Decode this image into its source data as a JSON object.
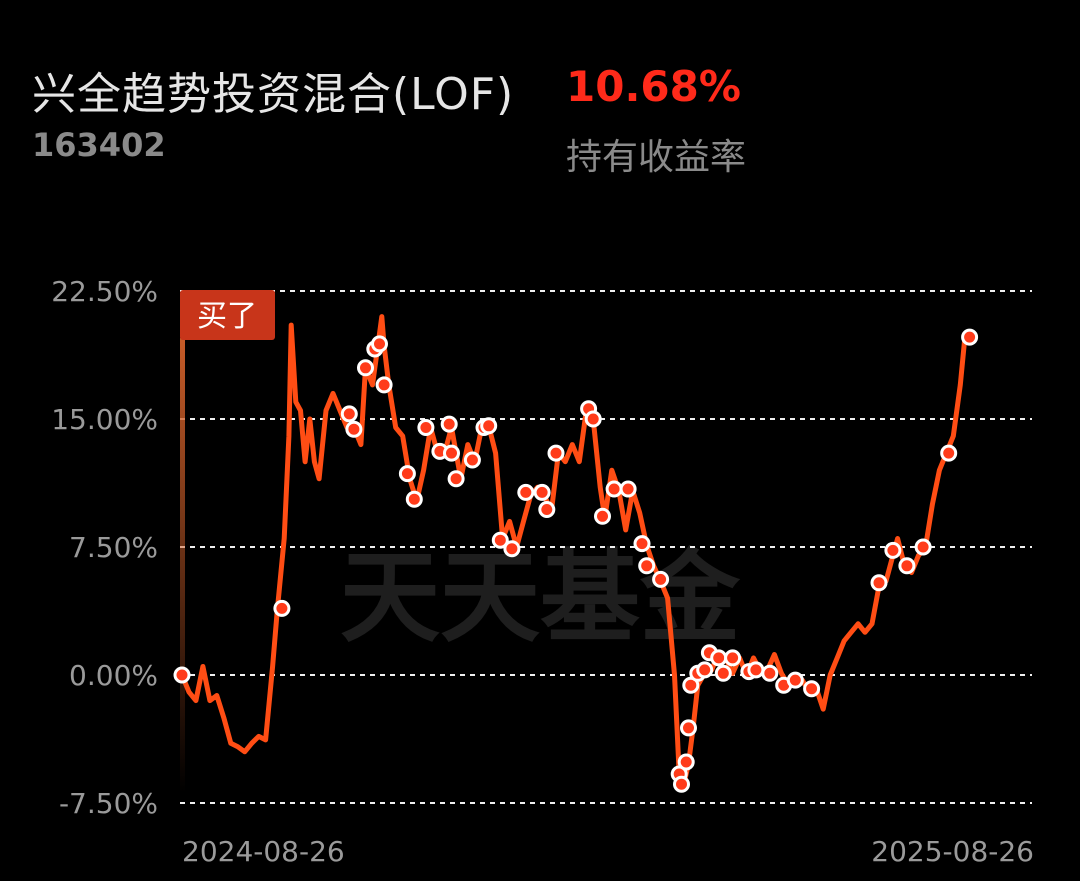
{
  "header": {
    "fund_name": "兴全趋势投资混合(LOF)",
    "fund_code": "163402",
    "return_value": "10.68%",
    "return_label": "持有收益率"
  },
  "watermark": "天天基金",
  "colors": {
    "background": "#000000",
    "line": "#ff4d14",
    "return_value": "#ff2a1a",
    "dot_fill": "#ff3b1a",
    "buy_tag": "#c8351a"
  },
  "chart_data": {
    "type": "line",
    "ylim": [
      -7.5,
      22.5
    ],
    "y_ticks": [
      22.5,
      15.0,
      7.5,
      0.0,
      -7.5
    ],
    "y_tick_labels": [
      "22.50%",
      "15.00%",
      "7.50%",
      "0.00%",
      "-7.50%"
    ],
    "x_tick_labels": [
      "2024-08-26",
      "2025-08-26"
    ],
    "x_domain": [
      "2024-08-26",
      "2025-08-26"
    ],
    "grid": true,
    "buy_marker": {
      "date": "2024-08-26",
      "label": "买了"
    },
    "series": [
      {
        "points": [
          [
            "2024-08-26",
            0.0
          ],
          [
            "2024-08-29",
            -1.0
          ],
          [
            "2024-09-01",
            -1.5
          ],
          [
            "2024-09-04",
            0.5
          ],
          [
            "2024-09-07",
            -1.5
          ],
          [
            "2024-09-10",
            -1.2
          ],
          [
            "2024-09-13",
            -2.5
          ],
          [
            "2024-09-16",
            -4.0
          ],
          [
            "2024-09-19",
            -4.2
          ],
          [
            "2024-09-22",
            -4.5
          ],
          [
            "2024-09-25",
            -4.0
          ],
          [
            "2024-09-28",
            -3.6
          ],
          [
            "2024-10-01",
            -3.8
          ],
          [
            "2024-10-04",
            0.5
          ],
          [
            "2024-10-06",
            3.8
          ],
          [
            "2024-10-09",
            8.0
          ],
          [
            "2024-10-11",
            14.0
          ],
          [
            "2024-10-12",
            20.5
          ],
          [
            "2024-10-14",
            16.0
          ],
          [
            "2024-10-16",
            15.5
          ],
          [
            "2024-10-18",
            12.5
          ],
          [
            "2024-10-20",
            15.0
          ],
          [
            "2024-10-22",
            12.5
          ],
          [
            "2024-10-24",
            11.5
          ],
          [
            "2024-10-27",
            15.5
          ],
          [
            "2024-10-30",
            16.5
          ],
          [
            "2024-11-02",
            15.5
          ],
          [
            "2024-11-05",
            14.5
          ],
          [
            "2024-11-08",
            14.5
          ],
          [
            "2024-11-11",
            13.5
          ],
          [
            "2024-11-13",
            18.0
          ],
          [
            "2024-11-16",
            17.0
          ],
          [
            "2024-11-18",
            19.0
          ],
          [
            "2024-11-20",
            21.0
          ],
          [
            "2024-11-21",
            19.3
          ],
          [
            "2024-11-23",
            17.0
          ],
          [
            "2024-11-26",
            14.5
          ],
          [
            "2024-11-29",
            14.0
          ],
          [
            "2024-12-02",
            11.5
          ],
          [
            "2024-12-05",
            10.2
          ],
          [
            "2024-12-08",
            12.0
          ],
          [
            "2024-12-11",
            14.5
          ],
          [
            "2024-12-14",
            13.0
          ],
          [
            "2024-12-17",
            13.0
          ],
          [
            "2024-12-20",
            14.5
          ],
          [
            "2024-12-22",
            13.0
          ],
          [
            "2024-12-24",
            11.5
          ],
          [
            "2024-12-27",
            13.5
          ],
          [
            "2024-12-30",
            12.5
          ],
          [
            "2025-01-02",
            14.5
          ],
          [
            "2025-01-05",
            14.6
          ],
          [
            "2025-01-08",
            13.0
          ],
          [
            "2025-01-11",
            8.0
          ],
          [
            "2025-01-14",
            9.0
          ],
          [
            "2025-01-17",
            7.5
          ],
          [
            "2025-01-20",
            9.0
          ],
          [
            "2025-01-23",
            10.5
          ],
          [
            "2025-01-26",
            11.0
          ],
          [
            "2025-01-29",
            10.5
          ],
          [
            "2025-02-01",
            9.6
          ],
          [
            "2025-02-04",
            13.0
          ],
          [
            "2025-02-07",
            12.5
          ],
          [
            "2025-02-10",
            13.5
          ],
          [
            "2025-02-13",
            12.5
          ],
          [
            "2025-02-16",
            15.5
          ],
          [
            "2025-02-19",
            15.0
          ],
          [
            "2025-02-22",
            11.0
          ],
          [
            "2025-02-24",
            9.2
          ],
          [
            "2025-02-27",
            12.0
          ],
          [
            "2025-03-02",
            10.8
          ],
          [
            "2025-03-05",
            8.5
          ],
          [
            "2025-03-08",
            10.8
          ],
          [
            "2025-03-11",
            9.5
          ],
          [
            "2025-03-14",
            7.6
          ],
          [
            "2025-03-17",
            6.4
          ],
          [
            "2025-03-20",
            5.5
          ],
          [
            "2025-03-23",
            4.5
          ],
          [
            "2025-03-26",
            0.0
          ],
          [
            "2025-03-28",
            -5.8
          ],
          [
            "2025-03-30",
            -6.4
          ],
          [
            "2025-04-01",
            -5.2
          ],
          [
            "2025-04-03",
            -3.1
          ],
          [
            "2025-04-05",
            -0.6
          ],
          [
            "2025-04-08",
            0.1
          ],
          [
            "2025-04-11",
            0.3
          ],
          [
            "2025-04-14",
            1.3
          ],
          [
            "2025-04-17",
            1.0
          ],
          [
            "2025-04-20",
            0.1
          ],
          [
            "2025-04-23",
            1.0
          ],
          [
            "2025-04-26",
            0.0
          ],
          [
            "2025-04-29",
            1.0
          ],
          [
            "2025-05-02",
            0.2
          ],
          [
            "2025-05-05",
            0.3
          ],
          [
            "2025-05-08",
            1.2
          ],
          [
            "2025-05-11",
            0.1
          ],
          [
            "2025-05-14",
            -0.6
          ],
          [
            "2025-05-17",
            -0.5
          ],
          [
            "2025-05-20",
            -0.3
          ],
          [
            "2025-05-23",
            -1.0
          ],
          [
            "2025-05-26",
            -0.8
          ],
          [
            "2025-05-29",
            -2.0
          ],
          [
            "2025-06-01",
            0.0
          ],
          [
            "2025-06-04",
            1.0
          ],
          [
            "2025-06-07",
            2.0
          ],
          [
            "2025-06-10",
            2.5
          ],
          [
            "2025-06-13",
            3.0
          ],
          [
            "2025-06-16",
            2.5
          ],
          [
            "2025-06-19",
            3.0
          ],
          [
            "2025-06-22",
            5.2
          ],
          [
            "2025-06-25",
            5.5
          ],
          [
            "2025-06-28",
            7.0
          ],
          [
            "2025-06-30",
            8.0
          ],
          [
            "2025-07-03",
            6.4
          ],
          [
            "2025-07-06",
            6.0
          ],
          [
            "2025-07-09",
            7.0
          ],
          [
            "2025-07-12",
            7.5
          ],
          [
            "2025-07-15",
            10.0
          ],
          [
            "2025-07-18",
            12.0
          ],
          [
            "2025-07-21",
            13.0
          ],
          [
            "2025-07-24",
            14.0
          ],
          [
            "2025-07-27",
            17.0
          ],
          [
            "2025-07-29",
            19.8
          ]
        ]
      }
    ],
    "trade_points": [
      [
        "2024-08-26",
        0.0
      ],
      [
        "2024-10-08",
        3.9
      ],
      [
        "2024-11-06",
        15.3
      ],
      [
        "2024-11-08",
        14.4
      ],
      [
        "2024-11-13",
        18.0
      ],
      [
        "2024-11-17",
        19.1
      ],
      [
        "2024-11-19",
        19.4
      ],
      [
        "2024-11-21",
        17.0
      ],
      [
        "2024-12-01",
        11.8
      ],
      [
        "2024-12-04",
        10.3
      ],
      [
        "2024-12-09",
        14.5
      ],
      [
        "2024-12-15",
        13.1
      ],
      [
        "2024-12-19",
        14.7
      ],
      [
        "2024-12-20",
        13.0
      ],
      [
        "2024-12-22",
        11.5
      ],
      [
        "2024-12-29",
        12.6
      ],
      [
        "2025-01-03",
        14.5
      ],
      [
        "2025-01-05",
        14.6
      ],
      [
        "2025-01-10",
        7.9
      ],
      [
        "2025-01-15",
        7.4
      ],
      [
        "2025-01-21",
        10.7
      ],
      [
        "2025-01-28",
        10.7
      ],
      [
        "2025-01-30",
        9.7
      ],
      [
        "2025-02-03",
        13.0
      ],
      [
        "2025-02-17",
        15.6
      ],
      [
        "2025-02-19",
        15.0
      ],
      [
        "2025-02-23",
        9.3
      ],
      [
        "2025-02-28",
        10.9
      ],
      [
        "2025-03-06",
        10.9
      ],
      [
        "2025-03-12",
        7.7
      ],
      [
        "2025-03-14",
        6.4
      ],
      [
        "2025-03-20",
        5.6
      ],
      [
        "2025-03-28",
        -5.8
      ],
      [
        "2025-03-29",
        -6.4
      ],
      [
        "2025-03-31",
        -5.1
      ],
      [
        "2025-04-01",
        -3.1
      ],
      [
        "2025-04-02",
        -0.6
      ],
      [
        "2025-04-05",
        0.1
      ],
      [
        "2025-04-08",
        0.3
      ],
      [
        "2025-04-10",
        1.3
      ],
      [
        "2025-04-14",
        1.0
      ],
      [
        "2025-04-16",
        0.1
      ],
      [
        "2025-04-20",
        1.0
      ],
      [
        "2025-04-27",
        0.2
      ],
      [
        "2025-04-30",
        0.3
      ],
      [
        "2025-05-06",
        0.1
      ],
      [
        "2025-05-12",
        -0.6
      ],
      [
        "2025-05-17",
        -0.3
      ],
      [
        "2025-05-24",
        -0.8
      ],
      [
        "2025-06-22",
        5.4
      ],
      [
        "2025-06-28",
        7.3
      ],
      [
        "2025-07-04",
        6.4
      ],
      [
        "2025-07-11",
        7.5
      ],
      [
        "2025-07-22",
        13.0
      ],
      [
        "2025-07-31",
        19.8
      ]
    ]
  }
}
